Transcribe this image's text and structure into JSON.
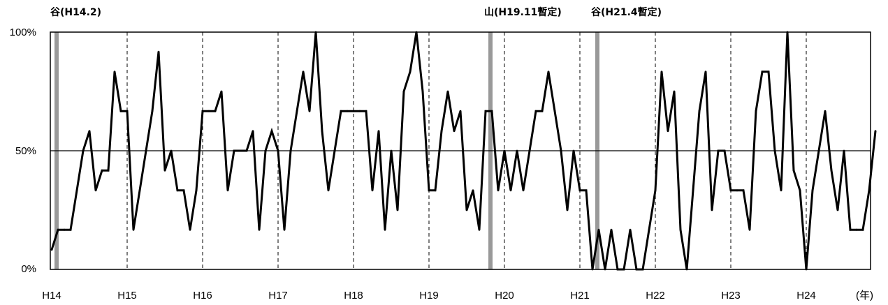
{
  "chart_data": {
    "type": "line",
    "title": "",
    "xlabel": "",
    "ylabel": "",
    "year_unit_label": "(年)",
    "ylim": [
      0,
      100
    ],
    "y_ticks": [
      {
        "value": 0,
        "label": "0%"
      },
      {
        "value": 50,
        "label": "50%"
      },
      {
        "value": 100,
        "label": "100%"
      }
    ],
    "year_ticks": [
      {
        "index": 0,
        "label": "H14"
      },
      {
        "index": 12,
        "label": "H15"
      },
      {
        "index": 24,
        "label": "H16"
      },
      {
        "index": 36,
        "label": "H17"
      },
      {
        "index": 48,
        "label": "H18"
      },
      {
        "index": 60,
        "label": "H19"
      },
      {
        "index": 72,
        "label": "H20"
      },
      {
        "index": 84,
        "label": "H21"
      },
      {
        "index": 96,
        "label": "H22"
      },
      {
        "index": 108,
        "label": "H23"
      },
      {
        "index": 120,
        "label": "H24"
      }
    ],
    "reference_line": 50,
    "turning_points": [
      {
        "index": 1,
        "label": "谷(H14.2)"
      },
      {
        "index": 70,
        "label": "山(H19.11暫定)"
      },
      {
        "index": 87,
        "label": "谷(H21.4暫定)"
      }
    ],
    "series": [
      {
        "values": [
          8.3,
          16.7,
          16.7,
          16.7,
          33.3,
          50,
          58.3,
          33.3,
          41.7,
          41.7,
          83.3,
          66.7,
          66.7,
          16.7,
          33.3,
          50,
          66.7,
          91.7,
          41.7,
          50,
          33.3,
          33.3,
          16.7,
          33.3,
          66.7,
          66.7,
          66.7,
          75,
          33.3,
          50,
          50,
          50,
          58.3,
          16.7,
          50,
          58.3,
          50,
          16.7,
          50,
          66.7,
          83.3,
          66.7,
          100,
          58.3,
          33.3,
          50,
          66.7,
          66.7,
          66.7,
          66.7,
          66.7,
          33.3,
          58.3,
          16.7,
          50,
          25,
          75,
          83.3,
          100,
          75,
          33.3,
          33.3,
          58.3,
          75,
          58.3,
          66.7,
          25,
          33.3,
          16.7,
          66.7,
          66.7,
          33.3,
          50,
          33.3,
          50,
          33.3,
          50,
          66.7,
          66.7,
          83.3,
          66.7,
          50,
          25,
          50,
          33.3,
          33.3,
          0,
          16.7,
          0,
          16.7,
          0,
          0,
          16.7,
          0,
          0,
          16.7,
          33.3,
          83.3,
          58.3,
          75,
          16.7,
          0,
          33.3,
          66.7,
          83.3,
          25,
          50,
          50,
          33.3,
          33.3,
          33.3,
          16.7,
          66.7,
          83.3,
          83.3,
          50,
          33.3,
          100,
          41.7,
          33.3,
          0,
          33.3,
          50,
          66.7,
          41.7,
          25,
          50,
          16.7,
          16.7,
          16.7,
          33.3,
          58.3
        ]
      }
    ],
    "grid": {
      "vertical_year_lines": "dashed",
      "horizontal": false
    },
    "colors": {
      "line": "#000000",
      "turning_point_bar": "#999999",
      "axis": "#000000"
    }
  }
}
